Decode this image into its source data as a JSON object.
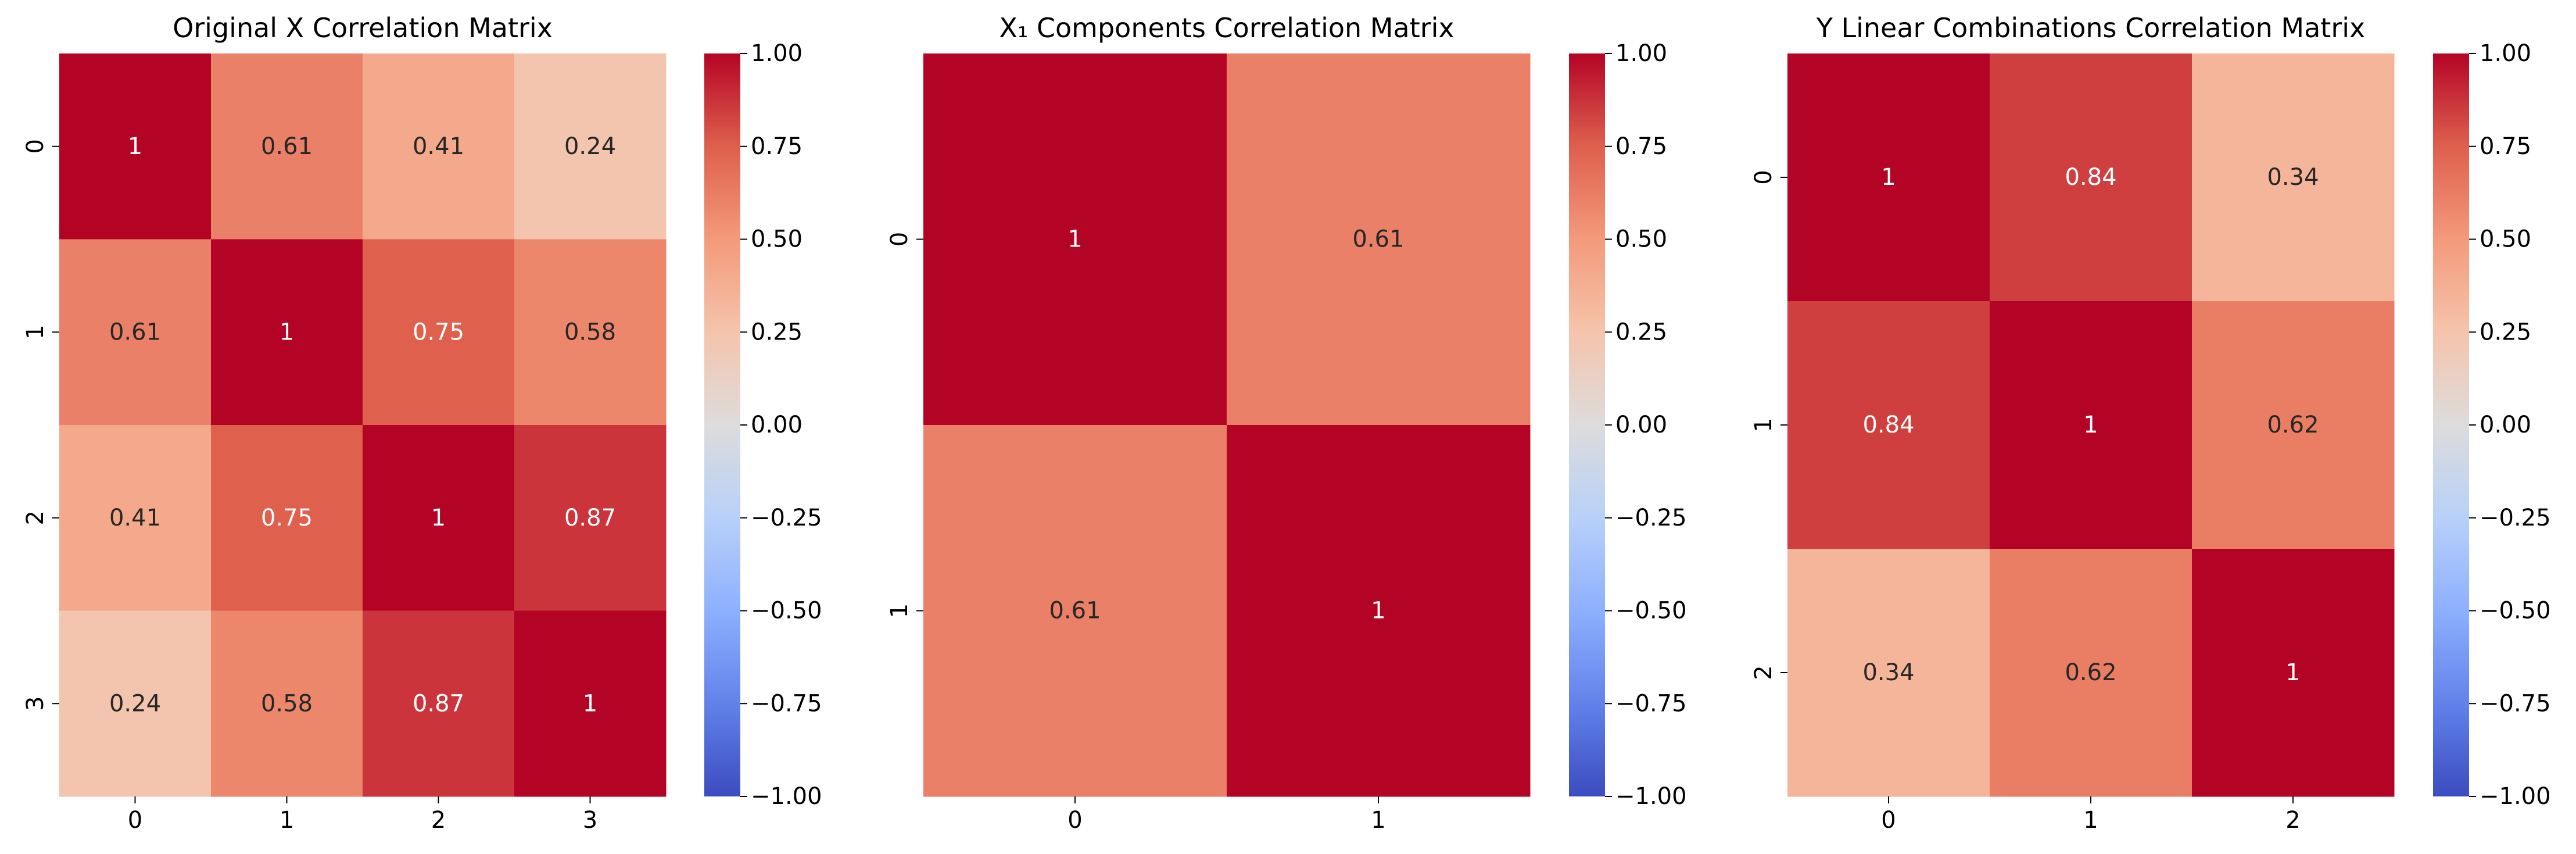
{
  "chart_data": [
    {
      "type": "heatmap",
      "title": "Original X Correlation Matrix",
      "x_tick_labels": [
        "0",
        "1",
        "2",
        "3"
      ],
      "y_tick_labels": [
        "0",
        "1",
        "2",
        "3"
      ],
      "values": [
        [
          1,
          0.61,
          0.41,
          0.24
        ],
        [
          0.61,
          1,
          0.75,
          0.58
        ],
        [
          0.41,
          0.75,
          1,
          0.87
        ],
        [
          0.24,
          0.58,
          0.87,
          1
        ]
      ],
      "cell_labels": [
        [
          "1",
          "0.61",
          "0.41",
          "0.24"
        ],
        [
          "0.61",
          "1",
          "0.75",
          "0.58"
        ],
        [
          "0.41",
          "0.75",
          "1",
          "0.87"
        ],
        [
          "0.24",
          "0.58",
          "0.87",
          "1"
        ]
      ],
      "colormap": "coolwarm",
      "vmin": -1,
      "vmax": 1,
      "colorbar_ticks": [
        "1.00",
        "0.75",
        "0.50",
        "0.25",
        "0.00",
        "−0.25",
        "−0.50",
        "−0.75",
        "−1.00"
      ]
    },
    {
      "type": "heatmap",
      "title": "X₁ Components Correlation Matrix",
      "x_tick_labels": [
        "0",
        "1"
      ],
      "y_tick_labels": [
        "0",
        "1"
      ],
      "values": [
        [
          1,
          0.61
        ],
        [
          0.61,
          1
        ]
      ],
      "cell_labels": [
        [
          "1",
          "0.61"
        ],
        [
          "0.61",
          "1"
        ]
      ],
      "colormap": "coolwarm",
      "vmin": -1,
      "vmax": 1,
      "colorbar_ticks": [
        "1.00",
        "0.75",
        "0.50",
        "0.25",
        "0.00",
        "−0.25",
        "−0.50",
        "−0.75",
        "−1.00"
      ]
    },
    {
      "type": "heatmap",
      "title": "Y Linear Combinations Correlation Matrix",
      "x_tick_labels": [
        "0",
        "1",
        "2"
      ],
      "y_tick_labels": [
        "0",
        "1",
        "2"
      ],
      "values": [
        [
          1,
          0.84,
          0.34
        ],
        [
          0.84,
          1,
          0.62
        ],
        [
          0.34,
          0.62,
          1
        ]
      ],
      "cell_labels": [
        [
          "1",
          "0.84",
          "0.34"
        ],
        [
          "0.84",
          "1",
          "0.62"
        ],
        [
          "0.34",
          "0.62",
          "1"
        ]
      ],
      "colormap": "coolwarm",
      "vmin": -1,
      "vmax": 1,
      "colorbar_ticks": [
        "1.00",
        "0.75",
        "0.50",
        "0.25",
        "0.00",
        "−0.25",
        "−0.50",
        "−0.75",
        "−1.00"
      ]
    }
  ]
}
